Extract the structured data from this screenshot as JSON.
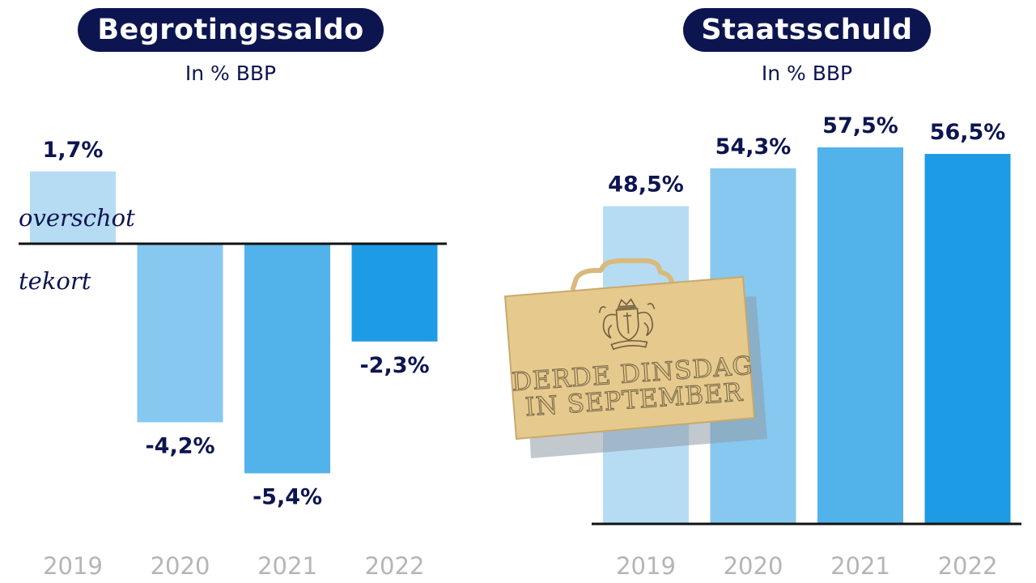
{
  "chart_data": [
    {
      "type": "bar",
      "title": "Begrotingssaldo",
      "subtitle": "In % BBP",
      "categories": [
        "2019",
        "2020",
        "2021",
        "2022"
      ],
      "values": [
        1.7,
        -4.2,
        -5.4,
        -2.3
      ],
      "value_labels": [
        "1,7%",
        "-4,2%",
        "-5,4%",
        "-2,3%"
      ],
      "zone_labels": {
        "above": "overschot",
        "below": "tekort"
      },
      "bar_colors": [
        "#b5dcf3",
        "#86c8ef",
        "#52b2ea",
        "#1e9be5"
      ],
      "grid": false
    },
    {
      "type": "bar",
      "title": "Staatsschuld",
      "subtitle": "In % BBP",
      "categories": [
        "2019",
        "2020",
        "2021",
        "2022"
      ],
      "values": [
        48.5,
        54.3,
        57.5,
        56.5
      ],
      "value_labels": [
        "48,5%",
        "54,3%",
        "57,5%",
        "56,5%"
      ],
      "bar_colors": [
        "#b5dcf3",
        "#86c8ef",
        "#52b2ea",
        "#1e9be5"
      ],
      "grid": false
    }
  ],
  "briefcase": {
    "icon": "briefcase-icon",
    "crest": "royal-coat-of-arms-icon",
    "lines": [
      "DERDE DINSDAG",
      "IN SEPTEMBER"
    ]
  },
  "colors": {
    "title_bg": "#0d1550",
    "title_text": "#ffffff",
    "value_text": "#0d1550",
    "year_text": "#b5b5b5",
    "axis": "#111111",
    "briefcase_fill": "#e6c98d",
    "briefcase_stroke": "#c9a96b",
    "briefcase_shadow": "#9aa7b4"
  }
}
